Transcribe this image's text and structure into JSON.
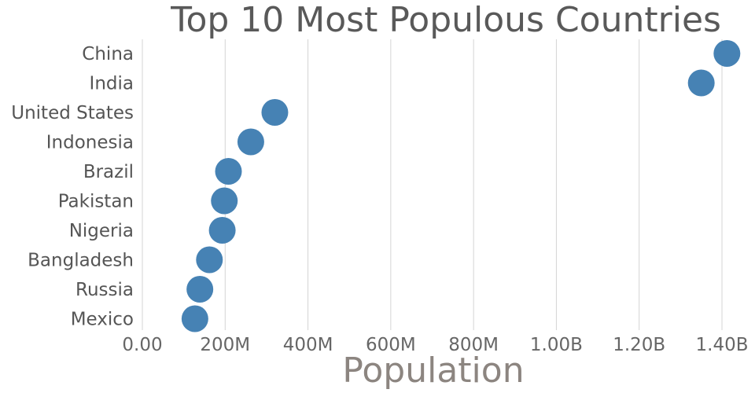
{
  "chart_data": {
    "type": "scatter",
    "title": "Top 10 Most Populous Countries",
    "xlabel": "Population",
    "ylabel": "",
    "xlim": [
      0,
      1400000000
    ],
    "x_ticks": [
      0,
      200000000,
      400000000,
      600000000,
      800000000,
      1000000000,
      1200000000,
      1400000000
    ],
    "x_tick_labels": [
      "0.00",
      "200M",
      "400M",
      "600M",
      "800M",
      "1.00B",
      "1.20B",
      "1.40B"
    ],
    "grid": true,
    "marker_color": "#4682b4",
    "categories": [
      "China",
      "India",
      "United States",
      "Indonesia",
      "Brazil",
      "Pakistan",
      "Nigeria",
      "Bangladesh",
      "Russia",
      "Mexico"
    ],
    "values": [
      1412000000,
      1350000000,
      320000000,
      262000000,
      208000000,
      198000000,
      193000000,
      162000000,
      139000000,
      127000000
    ]
  }
}
